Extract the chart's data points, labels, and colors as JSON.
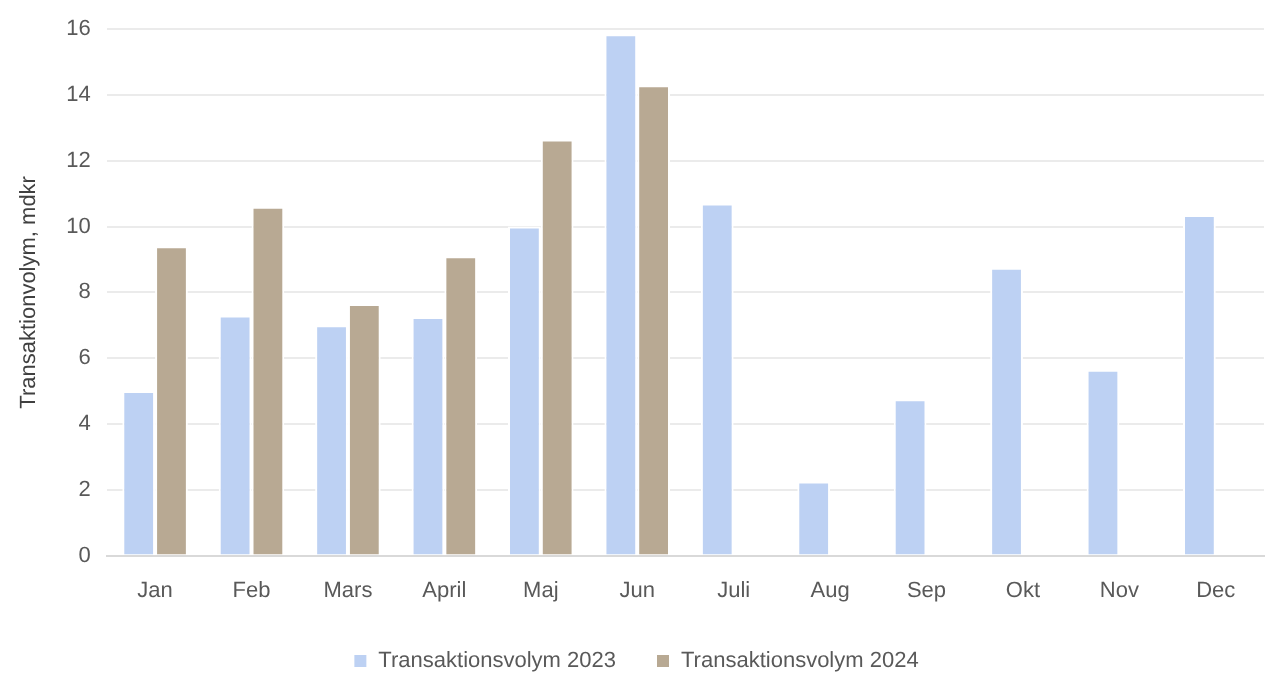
{
  "chart_data": {
    "type": "bar",
    "ylabel": "Transaktionvolym, mdkr",
    "categories": [
      "Jan",
      "Feb",
      "Mars",
      "April",
      "Maj",
      "Jun",
      "Juli",
      "Aug",
      "Sep",
      "Okt",
      "Nov",
      "Dec"
    ],
    "series": [
      {
        "name": "Transaktionsvolym 2023",
        "color": "#bdd1f3",
        "values": [
          5.0,
          7.3,
          7.0,
          7.25,
          10.0,
          15.85,
          10.7,
          2.25,
          4.75,
          8.75,
          5.65,
          10.35
        ]
      },
      {
        "name": "Transaktionsvolym 2024",
        "color": "#b8a993",
        "values": [
          9.4,
          10.6,
          7.65,
          9.1,
          12.65,
          14.3,
          null,
          null,
          null,
          null,
          null,
          null
        ]
      }
    ],
    "ylim": [
      0,
      16
    ],
    "yticks": [
      0,
      2,
      4,
      6,
      8,
      10,
      12,
      14,
      16
    ],
    "grid": "y",
    "legend": "bottom"
  }
}
